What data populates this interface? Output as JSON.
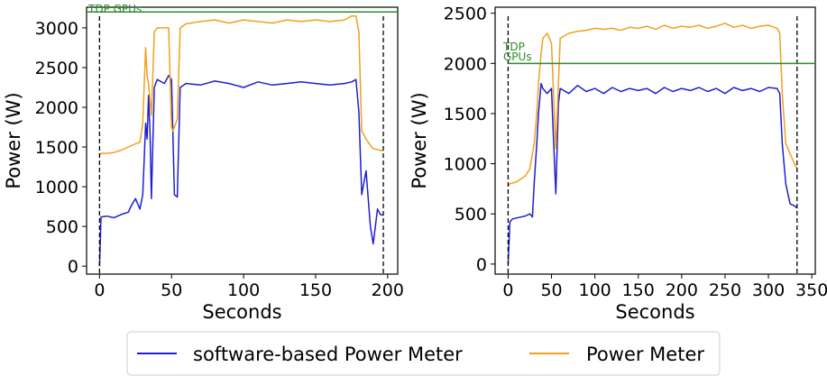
{
  "chart_data": [
    {
      "type": "line",
      "xlabel": "Seconds",
      "ylabel": "Power (W)",
      "xlim": [
        -9,
        207
      ],
      "ylim": [
        -100,
        3260
      ],
      "x_ticks": [
        0,
        50,
        100,
        150,
        200
      ],
      "y_ticks": [
        0,
        500,
        1000,
        1500,
        2000,
        2500,
        3000
      ],
      "hline": {
        "label": "TDP GPUs",
        "y": 3200,
        "x_start": -9,
        "x_end": 207,
        "color": "#2e8b2e"
      },
      "vlines": [
        0,
        197
      ],
      "series": [
        {
          "name": "software-based Power Meter",
          "color": "#1f1fd1",
          "x": [
            0,
            1,
            5,
            10,
            15,
            20,
            22,
            25,
            28,
            30,
            32,
            33,
            34,
            35,
            36,
            38,
            40,
            45,
            48,
            50,
            52,
            54,
            56,
            60,
            70,
            80,
            90,
            100,
            110,
            120,
            130,
            140,
            150,
            160,
            170,
            175,
            178,
            180,
            182,
            185,
            188,
            190,
            193,
            195,
            197
          ],
          "values": [
            0,
            620,
            630,
            610,
            650,
            680,
            760,
            850,
            720,
            900,
            1800,
            1600,
            2150,
            1700,
            850,
            2250,
            2350,
            2300,
            2400,
            2350,
            900,
            870,
            2250,
            2300,
            2280,
            2330,
            2300,
            2250,
            2320,
            2280,
            2300,
            2320,
            2300,
            2280,
            2300,
            2320,
            2350,
            1950,
            900,
            1200,
            500,
            280,
            720,
            650,
            640
          ]
        },
        {
          "name": "Power Meter",
          "color": "#f0a020",
          "x": [
            0,
            1,
            5,
            10,
            15,
            20,
            25,
            28,
            30,
            32,
            33,
            34,
            35,
            36,
            38,
            40,
            45,
            48,
            50,
            51,
            54,
            56,
            60,
            70,
            80,
            90,
            100,
            110,
            120,
            130,
            140,
            150,
            160,
            170,
            175,
            178,
            180,
            182,
            185,
            188,
            190,
            195,
            197
          ],
          "values": [
            1400,
            1420,
            1420,
            1430,
            1460,
            1500,
            1540,
            1560,
            1800,
            2750,
            2400,
            2300,
            2100,
            1900,
            2950,
            3000,
            3000,
            3000,
            1750,
            1700,
            1850,
            3000,
            3050,
            3080,
            3100,
            3060,
            3100,
            3080,
            3060,
            3100,
            3080,
            3100,
            3080,
            3100,
            3150,
            3150,
            2950,
            1700,
            1600,
            1520,
            1480,
            1460,
            1450
          ]
        }
      ]
    },
    {
      "type": "line",
      "xlabel": "Seconds",
      "ylabel": "Power (W)",
      "xlim": [
        -15,
        354
      ],
      "ylim": [
        -100,
        2560
      ],
      "x_ticks": [
        0,
        50,
        100,
        150,
        200,
        250,
        300,
        350
      ],
      "y_ticks": [
        0,
        500,
        1000,
        1500,
        2000,
        2500
      ],
      "hline": {
        "label": "TDP\nGPUs",
        "y": 2000,
        "x_start": 0,
        "x_end": 354,
        "color": "#2e8b2e"
      },
      "vlines": [
        0,
        333
      ],
      "series": [
        {
          "name": "software-based Power Meter",
          "color": "#1f1fd1",
          "x": [
            0,
            2,
            5,
            10,
            20,
            25,
            28,
            30,
            33,
            35,
            38,
            40,
            45,
            50,
            52,
            55,
            58,
            60,
            70,
            80,
            90,
            100,
            110,
            120,
            130,
            140,
            150,
            160,
            170,
            180,
            190,
            200,
            210,
            220,
            230,
            240,
            250,
            260,
            270,
            280,
            290,
            300,
            310,
            313,
            316,
            320,
            325,
            330,
            333
          ],
          "values": [
            0,
            420,
            450,
            460,
            480,
            500,
            470,
            800,
            1200,
            1500,
            1800,
            1750,
            1700,
            1750,
            1300,
            700,
            1600,
            1750,
            1700,
            1780,
            1720,
            1750,
            1700,
            1760,
            1720,
            1750,
            1730,
            1750,
            1700,
            1760,
            1720,
            1750,
            1730,
            1760,
            1720,
            1750,
            1700,
            1760,
            1730,
            1750,
            1720,
            1760,
            1750,
            1700,
            1200,
            800,
            600,
            580,
            560
          ]
        },
        {
          "name": "Power Meter",
          "color": "#f0a020",
          "x": [
            0,
            2,
            10,
            20,
            25,
            30,
            33,
            35,
            38,
            40,
            45,
            50,
            55,
            58,
            60,
            70,
            80,
            90,
            100,
            110,
            120,
            130,
            140,
            150,
            160,
            170,
            180,
            190,
            200,
            210,
            220,
            230,
            240,
            250,
            260,
            270,
            280,
            290,
            300,
            310,
            313,
            316,
            320,
            325,
            330,
            333
          ],
          "values": [
            780,
            800,
            820,
            880,
            950,
            1200,
            1500,
            1800,
            2100,
            2250,
            2300,
            2200,
            1150,
            1800,
            2250,
            2300,
            2320,
            2330,
            2350,
            2340,
            2350,
            2330,
            2360,
            2350,
            2370,
            2340,
            2380,
            2350,
            2370,
            2360,
            2380,
            2350,
            2370,
            2400,
            2360,
            2380,
            2350,
            2370,
            2380,
            2350,
            2300,
            1700,
            1200,
            1100,
            1000,
            950
          ]
        }
      ]
    }
  ],
  "legend": {
    "items": [
      {
        "label": "software-based Power Meter",
        "color": "#1f1fd1"
      },
      {
        "label": "Power Meter",
        "color": "#f0a020"
      }
    ]
  }
}
